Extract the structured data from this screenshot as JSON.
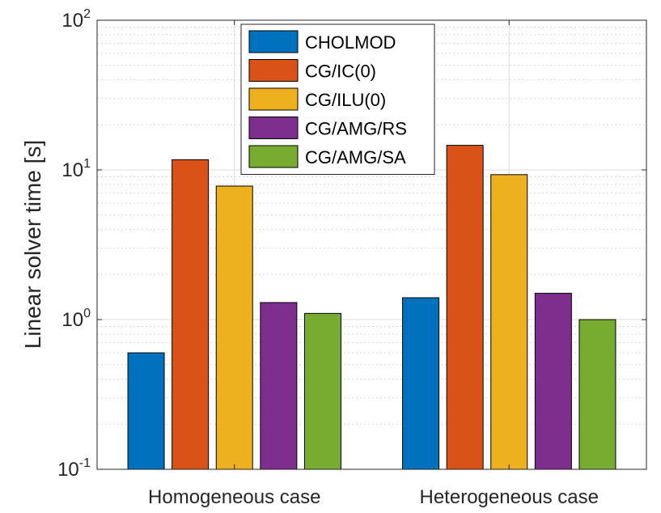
{
  "chart_data": {
    "type": "bar",
    "y_scale": "log",
    "ylim": [
      0.1,
      100
    ],
    "grid": true,
    "legend_position": "top-center",
    "xlabel": "",
    "ylabel": "Linear solver time [s]",
    "categories": [
      "Homogeneous case",
      "Heterogeneous case"
    ],
    "y_ticks": [
      {
        "base": "10",
        "exp": "-1"
      },
      {
        "base": "10",
        "exp": "0"
      },
      {
        "base": "10",
        "exp": "1"
      },
      {
        "base": "10",
        "exp": "2"
      }
    ],
    "series": [
      {
        "name": "CHOLMOD",
        "color": "#0072BD",
        "values": [
          0.6,
          1.4
        ]
      },
      {
        "name": "CG/IC(0)",
        "color": "#D95319",
        "values": [
          11.7,
          14.6
        ]
      },
      {
        "name": "CG/ILU(0)",
        "color": "#EDB120",
        "values": [
          7.8,
          9.3
        ]
      },
      {
        "name": "CG/AMG/RS",
        "color": "#7E2F8E",
        "values": [
          1.3,
          1.5
        ]
      },
      {
        "name": "CG/AMG/SA",
        "color": "#77AC30",
        "values": [
          1.1,
          1.0
        ]
      }
    ]
  }
}
